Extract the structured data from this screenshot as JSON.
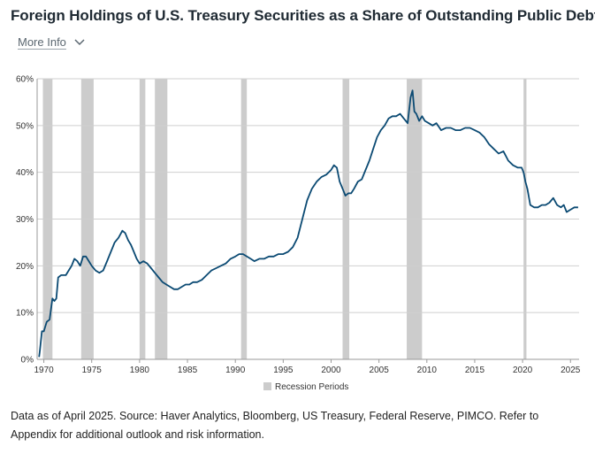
{
  "title": "Foreign Holdings of U.S. Treasury Securities as a Share of Outstanding Public Debt",
  "more_info": {
    "label": "More Info",
    "icon": "chevron-down-icon"
  },
  "footer": "Data as of April 2025. Source: Haver Analytics, Bloomberg, US Treasury, Federal Reserve, PIMCO. Refer to Appendix for additional outlook and risk information.",
  "colors": {
    "line": "#0b4a73",
    "recession": "#cccccc",
    "grid": "#cfcfcf",
    "axis": "#999999"
  },
  "chart_data": {
    "type": "line",
    "title": "Foreign Holdings of U.S. Treasury Securities as a Share of Outstanding Public Debt",
    "xlabel": "",
    "ylabel": "",
    "xlim": [
      1969.3,
      2025.9
    ],
    "ylim": [
      0,
      60
    ],
    "x_ticks": [
      1970,
      1975,
      1980,
      1985,
      1990,
      1995,
      2000,
      2005,
      2010,
      2015,
      2020,
      2025
    ],
    "y_ticks": [
      0,
      10,
      20,
      30,
      40,
      50,
      60
    ],
    "y_tick_labels": [
      "0%",
      "10%",
      "20%",
      "30%",
      "40%",
      "50%",
      "60%"
    ],
    "grid": "horizontal",
    "legend": {
      "position": "bottom-center",
      "label": "Recession Periods"
    },
    "recessions": [
      [
        1969.9,
        1970.9
      ],
      [
        1973.9,
        1975.2
      ],
      [
        1980.0,
        1980.6
      ],
      [
        1981.6,
        1982.9
      ],
      [
        1990.6,
        1991.2
      ],
      [
        2001.2,
        2001.9
      ],
      [
        2007.9,
        2009.5
      ],
      [
        2020.1,
        2020.4
      ]
    ],
    "series": [
      {
        "x": [
          1969.5,
          1969.6,
          1969.8,
          1970.0,
          1970.3,
          1970.6,
          1970.9,
          1971.1,
          1971.3,
          1971.5,
          1971.8,
          1972.0,
          1972.3,
          1972.6,
          1972.9,
          1973.2,
          1973.5,
          1973.8,
          1974.1,
          1974.4,
          1974.7,
          1975.0,
          1975.4,
          1975.8,
          1976.2,
          1976.6,
          1977.0,
          1977.4,
          1977.8,
          1978.2,
          1978.5,
          1978.8,
          1979.1,
          1979.4,
          1979.7,
          1980.0,
          1980.4,
          1980.8,
          1981.2,
          1981.6,
          1982.0,
          1982.4,
          1982.8,
          1983.2,
          1983.6,
          1984.0,
          1984.4,
          1984.8,
          1985.2,
          1985.6,
          1986.0,
          1986.5,
          1987.0,
          1987.5,
          1988.0,
          1988.5,
          1989.0,
          1989.5,
          1990.0,
          1990.4,
          1990.8,
          1991.2,
          1991.6,
          1992.0,
          1992.5,
          1993.0,
          1993.5,
          1994.0,
          1994.5,
          1995.0,
          1995.5,
          1996.0,
          1996.5,
          1997.0,
          1997.5,
          1998.0,
          1998.5,
          1999.0,
          1999.5,
          2000.0,
          2000.3,
          2000.6,
          2000.9,
          2001.2,
          2001.5,
          2001.8,
          2002.1,
          2002.4,
          2002.8,
          2003.2,
          2003.6,
          2004.0,
          2004.4,
          2004.8,
          2005.2,
          2005.6,
          2006.0,
          2006.4,
          2006.8,
          2007.2,
          2007.6,
          2008.0,
          2008.3,
          2008.5,
          2008.7,
          2008.9,
          2009.2,
          2009.5,
          2009.8,
          2010.2,
          2010.6,
          2011.0,
          2011.5,
          2012.0,
          2012.5,
          2013.0,
          2013.5,
          2014.0,
          2014.5,
          2015.0,
          2015.5,
          2016.0,
          2016.5,
          2017.0,
          2017.5,
          2018.0,
          2018.5,
          2019.0,
          2019.5,
          2019.9,
          2020.1,
          2020.3,
          2020.5,
          2020.8,
          2021.2,
          2021.6,
          2022.0,
          2022.4,
          2022.8,
          2023.2,
          2023.6,
          2024.0,
          2024.3,
          2024.6,
          2025.0,
          2025.4,
          2025.8
        ],
        "values": [
          0.5,
          2.0,
          6.0,
          6.0,
          8.0,
          8.5,
          13.0,
          12.5,
          13.0,
          17.5,
          18.0,
          18.0,
          18.0,
          19.0,
          20.0,
          21.5,
          21.0,
          20.0,
          22.0,
          22.0,
          21.0,
          20.0,
          19.0,
          18.5,
          19.0,
          21.0,
          23.0,
          25.0,
          26.0,
          27.5,
          27.0,
          25.5,
          24.5,
          23.0,
          21.5,
          20.5,
          21.0,
          20.5,
          19.5,
          18.5,
          17.5,
          16.5,
          16.0,
          15.5,
          15.0,
          15.0,
          15.5,
          16.0,
          16.0,
          16.5,
          16.5,
          17.0,
          18.0,
          19.0,
          19.5,
          20.0,
          20.5,
          21.5,
          22.0,
          22.5,
          22.5,
          22.0,
          21.5,
          21.0,
          21.5,
          21.5,
          22.0,
          22.0,
          22.5,
          22.5,
          23.0,
          24.0,
          26.0,
          30.0,
          34.0,
          36.5,
          38.0,
          39.0,
          39.5,
          40.5,
          41.5,
          41.0,
          38.0,
          36.5,
          35.0,
          35.5,
          35.5,
          36.5,
          38.0,
          38.5,
          40.5,
          42.5,
          45.0,
          47.5,
          49.0,
          50.0,
          51.5,
          52.0,
          52.0,
          52.5,
          51.5,
          50.5,
          56.0,
          57.5,
          53.0,
          52.5,
          51.0,
          52.0,
          51.0,
          50.5,
          50.0,
          50.5,
          49.0,
          49.5,
          49.5,
          49.0,
          49.0,
          49.5,
          49.5,
          49.0,
          48.5,
          47.5,
          46.0,
          45.0,
          44.0,
          44.5,
          42.5,
          41.5,
          41.0,
          41.0,
          40.0,
          38.0,
          36.5,
          33.0,
          32.5,
          32.5,
          33.0,
          33.0,
          33.5,
          34.5,
          33.0,
          32.5,
          33.0,
          31.5,
          32.0,
          32.5,
          32.5
        ]
      }
    ]
  }
}
